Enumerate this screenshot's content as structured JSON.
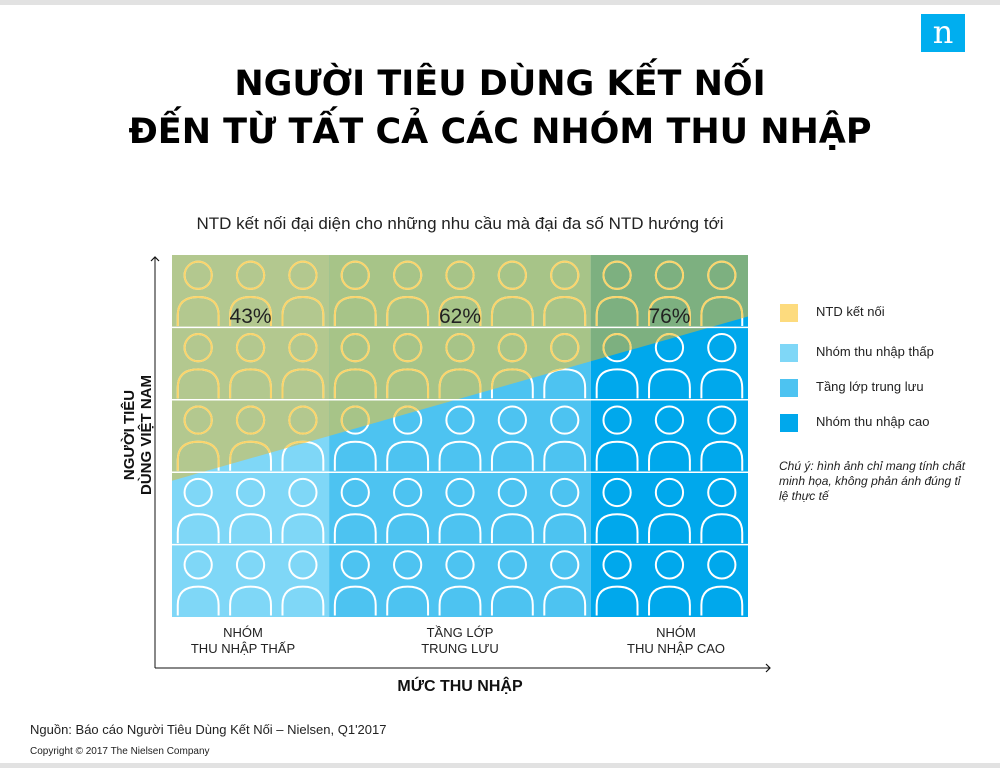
{
  "title_line1": "NGƯỜI TIÊU DÙNG KẾT NỐI",
  "title_line2": "ĐẾN TỪ TẤT CẢ CÁC NHÓM THU NHẬP",
  "subtitle": "NTD kết nối đại diện cho những nhu cầu mà đại đa số NTD hướng tới",
  "logo_letter": "n",
  "y_axis_label_line1": "NGƯỜI TIÊU",
  "y_axis_label_line2": "DÙNG VIỆT NAM",
  "x_axis_label": "MỨC THU NHẬP",
  "categories": [
    {
      "line1": "NHÓM",
      "line2": "THU NHẬP THẤP"
    },
    {
      "line1": "TẦNG LỚP",
      "line2": "TRUNG LƯU"
    },
    {
      "line1": "NHÓM",
      "line2": "THU NHẬP CAO"
    }
  ],
  "legend": [
    {
      "label": "NTD kết nối",
      "color": "#fddb7e"
    },
    {
      "label": "Nhóm thu nhập thấp",
      "color": "#7fd7f7"
    },
    {
      "label": "Tầng lớp trung lưu",
      "color": "#4dc3f1"
    },
    {
      "label": "Nhóm thu nhập cao",
      "color": "#00a8ec"
    }
  ],
  "note": "Chú ý: hình ảnh chỉ mang tính chất minh họa, không phản ánh đúng tỉ lệ thực tế",
  "source": "Nguồn: Báo cáo Người Tiêu Dùng Kết Nối – Nielsen, Q1'2017",
  "copyright": "Copyright © 2017 The Nielsen Company",
  "chart_data": {
    "type": "area",
    "title": "NTD kết nối đại diện cho những nhu cầu mà đại đa số NTD hướng tới",
    "xlabel": "MỨC THU NHẬP",
    "ylabel": "NGƯỜI TIÊU DÙNG VIỆT NAM",
    "categories": [
      "NHÓM THU NHẬP THẤP",
      "TẦNG LỚP TRUNG LƯU",
      "NHÓM THU NHẬP CAO"
    ],
    "series": [
      {
        "name": "NTD kết nối",
        "values": [
          43,
          62,
          76
        ],
        "labels": [
          "43%",
          "62%",
          "76%"
        ]
      }
    ],
    "ylim": [
      0,
      100
    ],
    "icon_columns_per_category": [
      3,
      5,
      3
    ],
    "icon_rows": 5,
    "colors": {
      "low": "#7fd7f7",
      "mid": "#4dc3f1",
      "high": "#00a8ec",
      "connected": "#fddb7e",
      "connected_low": "#b3c88f",
      "connected_mid": "#a7c488",
      "connected_high": "#7db080",
      "icon_outline_connected": "#fbd56b",
      "icon_outline_consumer": "#ffffff"
    }
  }
}
